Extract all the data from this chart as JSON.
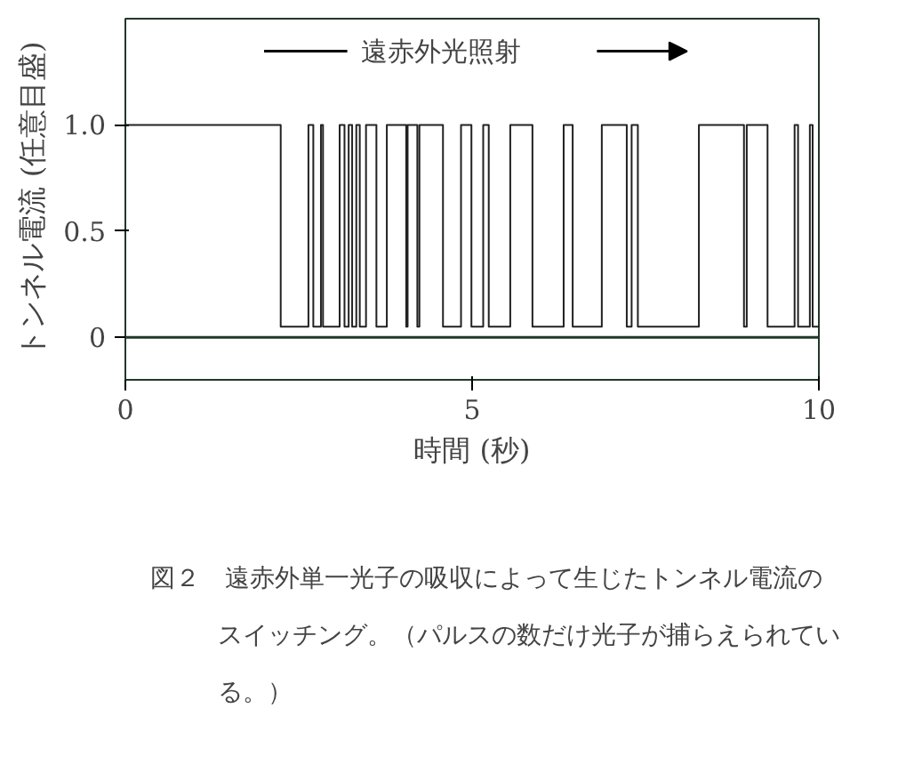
{
  "chart_data": {
    "type": "line",
    "xlabel": "時間 (秒)",
    "ylabel": "トンネル電流 (任意目盛)",
    "x": [
      0,
      2.24,
      2.24,
      2.64,
      2.64,
      2.71,
      2.71,
      2.82,
      2.82,
      2.85,
      2.85,
      3.09,
      3.09,
      3.16,
      3.16,
      3.22,
      3.22,
      3.27,
      3.27,
      3.33,
      3.33,
      3.38,
      3.38,
      3.47,
      3.47,
      3.62,
      3.62,
      3.77,
      3.77,
      4.05,
      4.05,
      4.07,
      4.07,
      4.21,
      4.21,
      4.24,
      4.24,
      4.58,
      4.58,
      4.84,
      4.84,
      4.99,
      4.99,
      5.16,
      5.16,
      5.24,
      5.24,
      5.55,
      5.55,
      5.87,
      5.87,
      6.32,
      6.32,
      6.45,
      6.45,
      6.87,
      6.87,
      7.23,
      7.23,
      7.3,
      7.3,
      7.39,
      7.39,
      8.27,
      8.27,
      8.92,
      8.92,
      8.96,
      8.96,
      9.26,
      9.26,
      9.65,
      9.65,
      9.7,
      9.7,
      9.87,
      9.87,
      9.91,
      9.91,
      10
    ],
    "series": [
      {
        "color": "#222222",
        "values": [
          1,
          1,
          0.05,
          0.05,
          1,
          1,
          0.05,
          0.05,
          1,
          1,
          0.05,
          0.05,
          1,
          1,
          0.05,
          0.05,
          1,
          1,
          0.05,
          0.05,
          1,
          1,
          0.05,
          0.05,
          1,
          1,
          0.05,
          0.05,
          1,
          1,
          0.05,
          0.05,
          1,
          1,
          0.05,
          0.05,
          1,
          1,
          0.05,
          0.05,
          1,
          1,
          0.05,
          0.05,
          1,
          1,
          0.05,
          0.05,
          1,
          1,
          0.05,
          0.05,
          1,
          1,
          0.05,
          0.05,
          1,
          1,
          0.05,
          0.05,
          1,
          1,
          0.05,
          0.05,
          1,
          1,
          0.05,
          0.05,
          1,
          1,
          0.05,
          0.05,
          1,
          1,
          0.05,
          0.05,
          1,
          1,
          0.05,
          0.05
        ]
      }
    ],
    "xlim": [
      0,
      10
    ],
    "xticks": [
      0,
      5,
      10
    ],
    "ylim": [
      -0.2,
      1.5
    ],
    "yticks": [
      0,
      0.5,
      {
        "value": 1,
        "label": "1.0"
      }
    ],
    "ref_lines": [
      {
        "axis": "y",
        "value": 0,
        "color": "#203828"
      }
    ],
    "annotations": [
      "遠赤外光照射",
      "図２　遠赤外単一光子の吸収によって生じたトンネル電流のスイッチング。（パルスの数だけ光子が捕らえられている。）"
    ],
    "grid": false
  }
}
